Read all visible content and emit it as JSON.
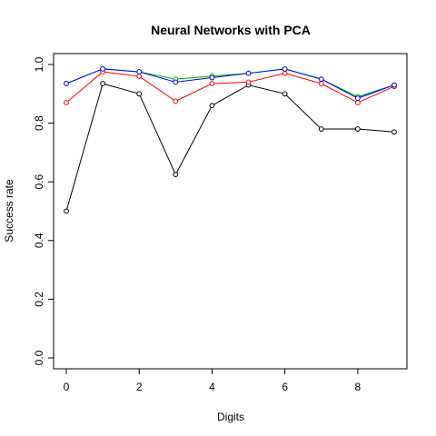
{
  "chart_data": {
    "type": "line",
    "title": "Neural Networks with PCA",
    "xlabel": "Digits",
    "ylabel": "Success rate",
    "xlim": [
      0,
      9
    ],
    "ylim": [
      0,
      1
    ],
    "x_ticks": [
      "0",
      "2",
      "4",
      "6",
      "8"
    ],
    "y_ticks": [
      "0.0",
      "0.2",
      "0.4",
      "0.6",
      "0.8",
      "1.0"
    ],
    "grid": false,
    "x": [
      0,
      1,
      2,
      3,
      4,
      5,
      6,
      7,
      8,
      9
    ],
    "series": [
      {
        "color": "#000000",
        "values": [
          0.5,
          0.935,
          0.9,
          0.625,
          0.86,
          0.93,
          0.9,
          0.78,
          0.78,
          0.77
        ]
      },
      {
        "color": "#ff0000",
        "values": [
          0.87,
          0.975,
          0.96,
          0.875,
          0.935,
          0.94,
          0.97,
          0.935,
          0.87,
          0.925
        ]
      },
      {
        "color": "#00aa00",
        "values": [
          0.935,
          0.985,
          0.975,
          0.95,
          0.96,
          0.97,
          0.985,
          0.95,
          0.89,
          0.93
        ]
      },
      {
        "color": "#0000ff",
        "values": [
          0.935,
          0.985,
          0.975,
          0.94,
          0.955,
          0.97,
          0.985,
          0.95,
          0.885,
          0.93
        ]
      }
    ]
  }
}
